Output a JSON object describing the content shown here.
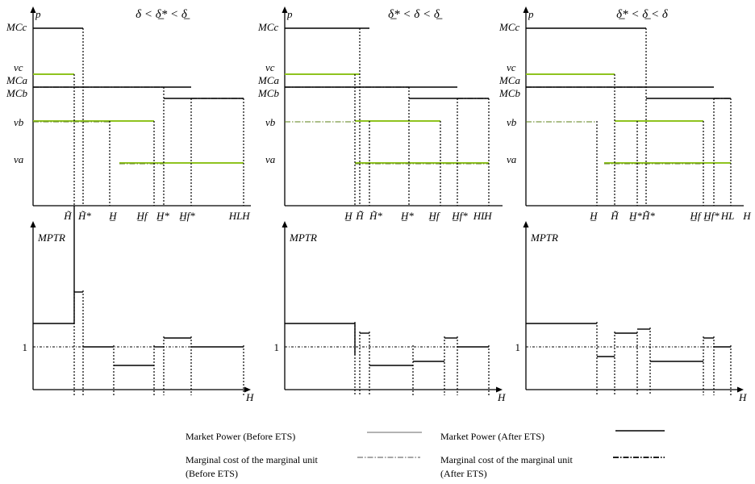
{
  "colors": {
    "before_market_power": "#9a9a9a",
    "after_market_power": "#000000",
    "value_lines": "#8fc31f",
    "axis": "#000000"
  },
  "panels": [
    {
      "title": "δ < δ̲* < δ̲",
      "y_axis_symbol": "p",
      "price_labels": [
        "MCc",
        "vc",
        "MCa",
        "MCb",
        "vb",
        "va"
      ],
      "x_labels": [
        "H̃",
        "H̃*",
        "H̲",
        "H̲f",
        "H̲*",
        "H̲f*",
        "HL",
        "H"
      ],
      "mptr_label": "MPTR",
      "mptr_one": "1",
      "mptr_x_label": "H"
    },
    {
      "title": "δ̲* < δ < δ̲",
      "y_axis_symbol": "p",
      "price_labels": [
        "MCc",
        "vc",
        "MCa",
        "MCb",
        "vb",
        "va"
      ],
      "x_labels": [
        "H̲",
        "H̃̃",
        "H̃*",
        "H̲*",
        "H̲f",
        "H̲f*",
        "HL",
        "H"
      ],
      "mptr_label": "MPTR",
      "mptr_one": "1",
      "mptr_x_label": "H"
    },
    {
      "title": "δ̲* < δ̲ < δ",
      "y_axis_symbol": "p",
      "price_labels": [
        "MCc",
        "vc",
        "MCa",
        "MCb",
        "vb",
        "va"
      ],
      "x_labels": [
        "H̲",
        "H̃̃",
        "H̲*",
        "H̃̃*",
        "H̲f",
        "H̲f*",
        "HL",
        "H"
      ],
      "mptr_label": "MPTR",
      "mptr_one": "1",
      "mptr_x_label": "H"
    }
  ],
  "legend": {
    "before_mp": "Market Power (Before ETS)",
    "after_mp": "Market Power (After ETS)",
    "before_mc_line1": "Marginal cost of the marginal unit",
    "before_mc_line2": "(Before ETS)",
    "after_mc_line1": "Marginal cost of the marginal unit",
    "after_mc_line2": "(After ETS)"
  }
}
